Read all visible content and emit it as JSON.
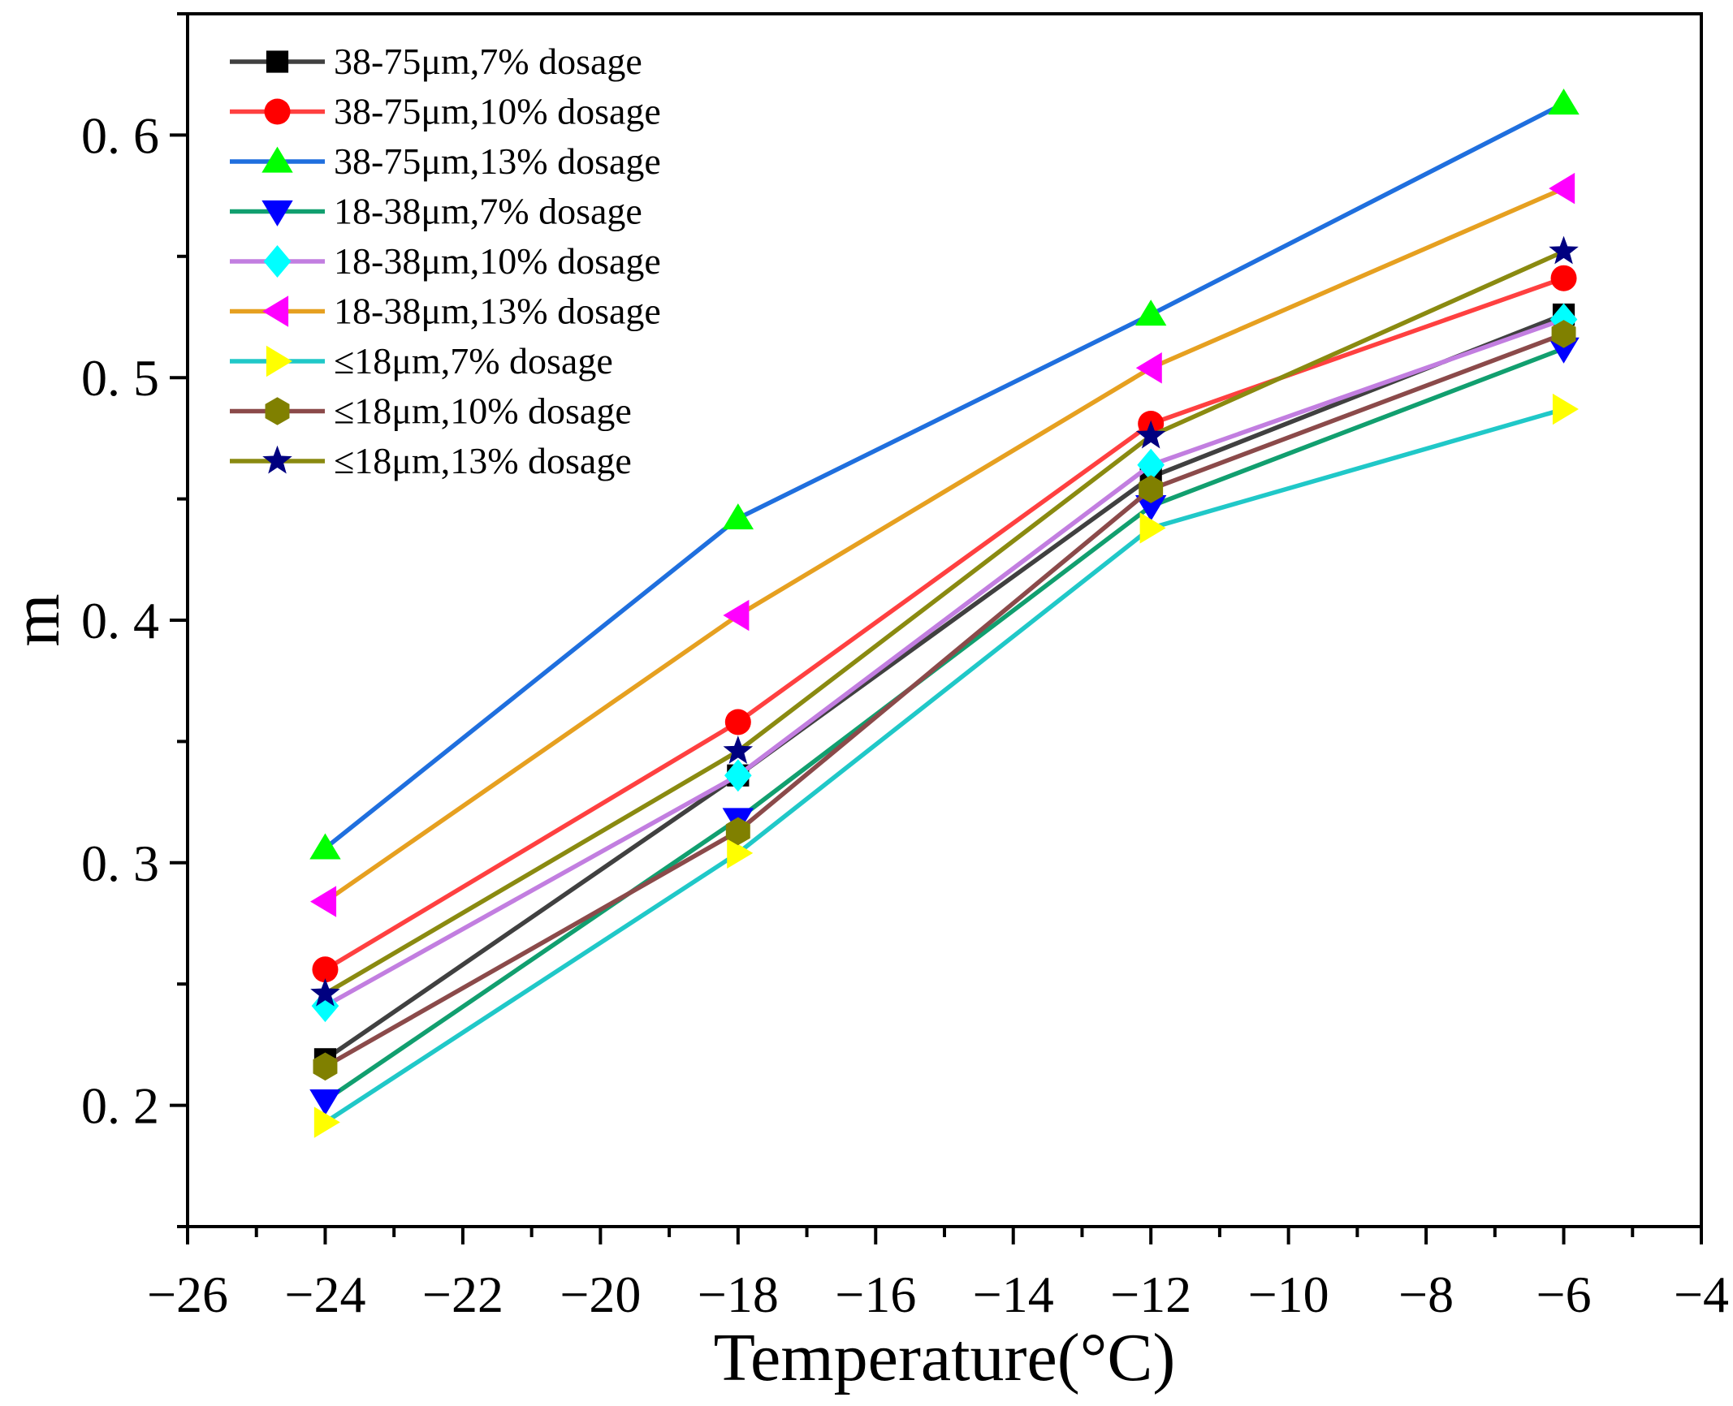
{
  "chart_data": {
    "type": "line",
    "title": "",
    "xlabel": "Temperature(°C)",
    "ylabel": "m",
    "xlim": [
      -26,
      -4
    ],
    "ylim": [
      0.15,
      0.65
    ],
    "x_ticks": [
      -26,
      -24,
      -22,
      -20,
      -18,
      -16,
      -14,
      -12,
      -10,
      -8,
      -6,
      -4
    ],
    "x_tick_labels": [
      "−26",
      "−24",
      "−22",
      "−20",
      "−18",
      "−16",
      "−14",
      "−12",
      "−10",
      "−8",
      "−6",
      "−4"
    ],
    "y_ticks": [
      0.2,
      0.3,
      0.4,
      0.5,
      0.6
    ],
    "y_tick_labels": [
      "0. 2",
      "0. 3",
      "0. 4",
      "0. 5",
      "0. 6"
    ],
    "legend_position": "top-left",
    "x": [
      -24,
      -18,
      -12,
      -6
    ],
    "series": [
      {
        "name": "38-75μm,7% dosage",
        "values": [
          0.219,
          0.336,
          0.459,
          0.526
        ],
        "line_color": "#404040",
        "marker_color": "#000000",
        "marker": "square"
      },
      {
        "name": "38-75μm,10% dosage",
        "values": [
          0.256,
          0.358,
          0.481,
          0.541
        ],
        "line_color": "#ff4040",
        "marker_color": "#ff0000",
        "marker": "circle"
      },
      {
        "name": "38-75μm,13% dosage",
        "values": [
          0.306,
          0.442,
          0.526,
          0.613
        ],
        "line_color": "#1f6fde",
        "marker_color": "#00ff00",
        "marker": "triangle-up"
      },
      {
        "name": "18-38μm,7% dosage",
        "values": [
          0.202,
          0.318,
          0.447,
          0.512
        ],
        "line_color": "#119f6f",
        "marker_color": "#0000ff",
        "marker": "triangle-down"
      },
      {
        "name": "18-38μm,10% dosage",
        "values": [
          0.241,
          0.336,
          0.464,
          0.524
        ],
        "line_color": "#c27ee0",
        "marker_color": "#00ffff",
        "marker": "diamond"
      },
      {
        "name": "18-38μm,13% dosage",
        "values": [
          0.284,
          0.402,
          0.504,
          0.578
        ],
        "line_color": "#e6a020",
        "marker_color": "#ff00ff",
        "marker": "triangle-left"
      },
      {
        "name": "≤18μm,7% dosage",
        "values": [
          0.193,
          0.304,
          0.438,
          0.487
        ],
        "line_color": "#20c8c8",
        "marker_color": "#ffff00",
        "marker": "triangle-right"
      },
      {
        "name": "≤18μm,10% dosage",
        "values": [
          0.216,
          0.313,
          0.454,
          0.518
        ],
        "line_color": "#8b4a4a",
        "marker_color": "#808000",
        "marker": "hexagon"
      },
      {
        "name": "≤18μm,13% dosage",
        "values": [
          0.246,
          0.346,
          0.476,
          0.552
        ],
        "line_color": "#8a8a10",
        "marker_color": "#000080",
        "marker": "star"
      }
    ]
  }
}
